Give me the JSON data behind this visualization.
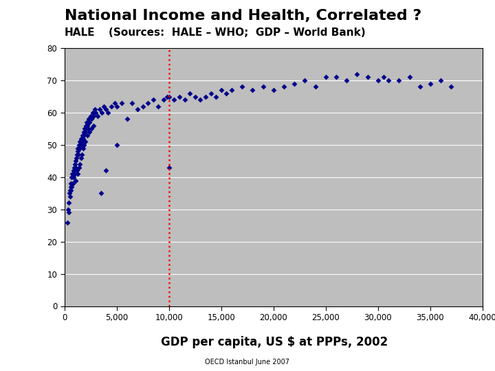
{
  "title": "National Income and Health, Correlated ?",
  "subtitle": "(Sources:  HALE – WHO;  GDP – World Bank)",
  "ylabel_left": "HALE",
  "xlabel": "GDP per capita, US $ at PPPs, 2002",
  "footer": "OECD Istanbul June 2007",
  "vline_x": 10000,
  "xlim": [
    0,
    40000
  ],
  "ylim": [
    0,
    80
  ],
  "xticks": [
    0,
    5000,
    10000,
    15000,
    20000,
    25000,
    30000,
    35000,
    40000
  ],
  "yticks": [
    0,
    10,
    20,
    30,
    40,
    50,
    60,
    70,
    80
  ],
  "xtick_labels": [
    "0",
    "5,000",
    "10,000",
    "15,000",
    "20,000",
    "25,000",
    "30,000",
    "35,000",
    "40,000"
  ],
  "ytick_labels": [
    "0",
    "10",
    "20",
    "30",
    "40",
    "50",
    "60",
    "70",
    "80"
  ],
  "bg_color": "#FFFFFF",
  "plot_bg_color": "#BEBEBE",
  "dot_color": "#00008B",
  "vline_color": "#FF0000",
  "scatter_x": [
    300,
    400,
    500,
    550,
    600,
    650,
    700,
    750,
    800,
    850,
    900,
    950,
    1000,
    1050,
    1100,
    1150,
    1200,
    1250,
    1300,
    1350,
    1400,
    1450,
    1500,
    1550,
    1600,
    1650,
    1700,
    1750,
    1800,
    1850,
    1900,
    1950,
    2000,
    2050,
    2100,
    2150,
    2200,
    2250,
    2300,
    2350,
    2400,
    2500,
    2600,
    2700,
    2800,
    2900,
    3000,
    3200,
    3400,
    3600,
    3800,
    4000,
    4200,
    4500,
    4800,
    5000,
    5500,
    6000,
    6500,
    7000,
    7500,
    8000,
    8500,
    9000,
    9500,
    9800,
    10000,
    10000,
    10500,
    11000,
    11500,
    12000,
    12500,
    13000,
    13500,
    14000,
    14500,
    15000,
    15500,
    16000,
    17000,
    18000,
    19000,
    20000,
    21000,
    22000,
    23000,
    24000,
    25000,
    26000,
    27000,
    28000,
    29000,
    30000,
    30500,
    31000,
    32000,
    33000,
    34000,
    35000,
    36000,
    37000,
    600,
    700,
    800,
    900,
    1000,
    1100,
    1200,
    1300,
    1400,
    1500,
    1600,
    1700,
    1800,
    1900,
    2000,
    2200,
    2400,
    2600,
    2800,
    350,
    450,
    550,
    3500,
    4000,
    5000
  ],
  "scatter_y": [
    26,
    29,
    35,
    36,
    38,
    37,
    40,
    41,
    38,
    42,
    41,
    43,
    44,
    45,
    43,
    46,
    47,
    48,
    49,
    47,
    50,
    49,
    51,
    50,
    52,
    51,
    50,
    53,
    52,
    54,
    53,
    55,
    54,
    56,
    55,
    57,
    56,
    55,
    57,
    58,
    57,
    59,
    58,
    60,
    59,
    61,
    60,
    59,
    61,
    60,
    62,
    61,
    60,
    62,
    63,
    62,
    63,
    58,
    63,
    61,
    62,
    63,
    64,
    62,
    64,
    65,
    43,
    65,
    64,
    65,
    64,
    66,
    65,
    64,
    65,
    66,
    65,
    67,
    66,
    67,
    68,
    67,
    68,
    67,
    68,
    69,
    70,
    68,
    71,
    71,
    70,
    72,
    71,
    70,
    71,
    70,
    70,
    71,
    68,
    69,
    70,
    68,
    36,
    37,
    38,
    40,
    41,
    39,
    42,
    41,
    43,
    44,
    46,
    47,
    49,
    50,
    51,
    53,
    54,
    55,
    56,
    30,
    32,
    34,
    35,
    42,
    50
  ]
}
